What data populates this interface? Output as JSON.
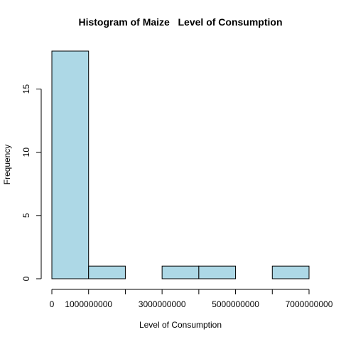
{
  "chart_data": {
    "type": "bar",
    "subtype": "histogram",
    "title": "Histogram of Maize   Level of Consumption",
    "xlabel": "Level of Consumption",
    "ylabel": "Frequency",
    "bin_width": 1000000000,
    "bins": [
      {
        "start": 0,
        "end": 1000000000,
        "count": 18
      },
      {
        "start": 1000000000,
        "end": 2000000000,
        "count": 1
      },
      {
        "start": 2000000000,
        "end": 3000000000,
        "count": 0
      },
      {
        "start": 3000000000,
        "end": 4000000000,
        "count": 1
      },
      {
        "start": 4000000000,
        "end": 5000000000,
        "count": 1
      },
      {
        "start": 5000000000,
        "end": 6000000000,
        "count": 0
      },
      {
        "start": 6000000000,
        "end": 7000000000,
        "count": 1
      }
    ],
    "xlim": [
      0,
      7000000000
    ],
    "ylim": [
      0,
      18
    ],
    "x_ticks": [
      0,
      1000000000,
      2000000000,
      3000000000,
      4000000000,
      5000000000,
      6000000000,
      7000000000
    ],
    "x_tick_labels": [
      "0",
      "1000000000",
      "",
      "3000000000",
      "",
      "5000000000",
      "",
      "7000000000"
    ],
    "y_ticks": [
      0,
      5,
      10,
      15
    ],
    "y_tick_labels": [
      "0",
      "5",
      "10",
      "15"
    ],
    "bar_color": "#add8e6",
    "bar_border_color": "#000000",
    "grid": false,
    "legend": "none"
  }
}
